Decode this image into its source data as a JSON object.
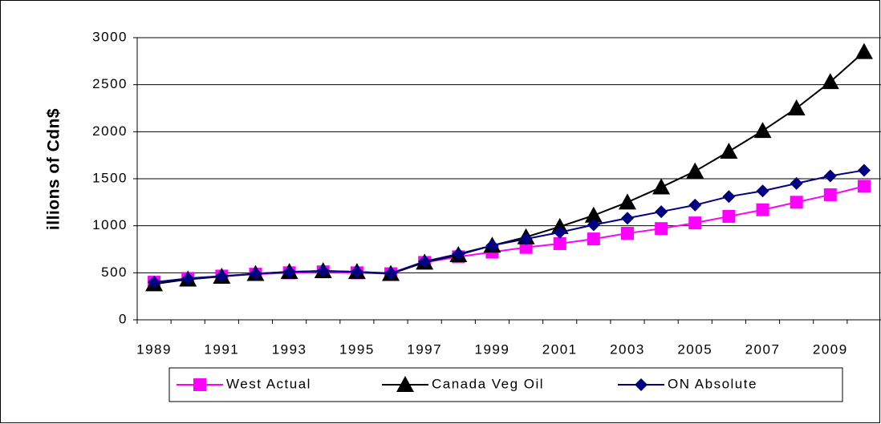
{
  "chart_data": {
    "type": "line",
    "y_label": "Millions of Cdn$",
    "categories": [
      "1989",
      null,
      "1991",
      null,
      "1993",
      null,
      "1995",
      null,
      "1997",
      null,
      "1999",
      null,
      "2001",
      null,
      "2003",
      null,
      "2005",
      null,
      "2007",
      null,
      "2009",
      null
    ],
    "series": [
      {
        "name": "West Actual",
        "color": "#ff00ff",
        "marker": "square",
        "values": [
          400,
          440,
          465,
          485,
          500,
          510,
          500,
          490,
          610,
          670,
          720,
          770,
          810,
          860,
          920,
          970,
          1030,
          1100,
          1170,
          1250,
          1330,
          1420
        ]
      },
      {
        "name": "Canada Veg Oil",
        "color": "#000000",
        "marker": "triangle",
        "values": [
          380,
          430,
          460,
          490,
          510,
          520,
          510,
          490,
          610,
          690,
          790,
          880,
          990,
          1110,
          1250,
          1410,
          1580,
          1790,
          2010,
          2250,
          2530,
          2850
        ]
      },
      {
        "name": "ON Absolute",
        "color": "#000080",
        "marker": "diamond",
        "values": [
          400,
          440,
          465,
          490,
          510,
          520,
          510,
          495,
          620,
          700,
          790,
          860,
          930,
          1010,
          1080,
          1150,
          1220,
          1310,
          1370,
          1450,
          1530,
          1590
        ]
      }
    ],
    "ylim": [
      0,
      3000
    ],
    "yticks": [
      0,
      500,
      1000,
      1500,
      2000,
      2500,
      3000
    ],
    "grid": true,
    "legend": "bottom"
  }
}
